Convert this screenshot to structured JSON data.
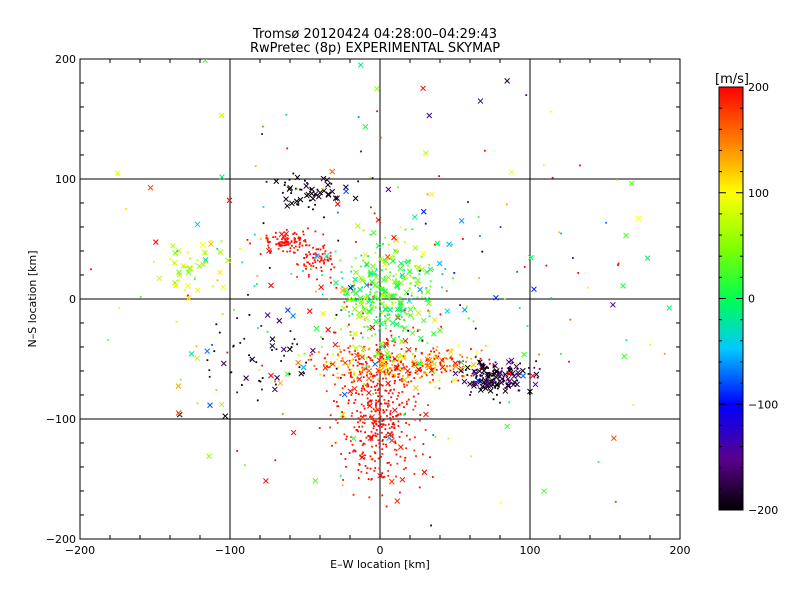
{
  "chart_data": {
    "type": "scatter",
    "title": "Tromsø 20120424 04:28:00–04:29:43",
    "subtitle": "RwPretec (8p) EXPERIMENTAL SKYMAP",
    "xlabel": "E–W location [km]",
    "ylabel": "N–S location [km]",
    "xlim": [
      -200,
      200
    ],
    "ylim": [
      -200,
      200
    ],
    "xticks": [
      -200,
      -100,
      0,
      100,
      200
    ],
    "yticks": [
      -200,
      -100,
      0,
      100,
      200
    ],
    "grid": true,
    "colorbar": {
      "label": "[m/s]",
      "range": [
        -200,
        200
      ],
      "ticks": [
        200,
        100,
        0,
        -100,
        -200
      ],
      "colormap": "rainbow (black-purple-blue-cyan-green-yellow-red)"
    },
    "markers": {
      "dot": "small dot",
      "cross": "×"
    },
    "clusters": [
      {
        "name": "south-central",
        "cx": -2,
        "cy": -95,
        "sx": 14,
        "sy": 35,
        "n": 420,
        "v": 195,
        "vs": 10,
        "cross": 0.05
      },
      {
        "name": "east-west band",
        "cx": 15,
        "cy": -55,
        "sx": 28,
        "sy": 8,
        "n": 380,
        "v": 160,
        "vs": 55,
        "cross": 0.12
      },
      {
        "name": "center plume",
        "cx": 5,
        "cy": 5,
        "sx": 16,
        "sy": 22,
        "n": 320,
        "v": 25,
        "vs": 35,
        "cross": 0.35
      },
      {
        "name": "north-west arc",
        "cx": -62,
        "cy": 48,
        "sx": 9,
        "sy": 5,
        "n": 110,
        "v": 195,
        "vs": 8,
        "cross": 0.05
      },
      {
        "name": "north-west arc 2",
        "cx": -42,
        "cy": 32,
        "sx": 6,
        "sy": 6,
        "n": 60,
        "v": 195,
        "vs": 8,
        "cross": 0.05
      },
      {
        "name": "east dark band",
        "cx": 78,
        "cy": -65,
        "sx": 12,
        "sy": 7,
        "n": 150,
        "v": -185,
        "vs": 20,
        "cross": 0.5
      },
      {
        "name": "north dark arc",
        "cx": -45,
        "cy": 90,
        "sx": 14,
        "sy": 8,
        "n": 55,
        "v": -195,
        "vs": 10,
        "cross": 0.6
      },
      {
        "name": "west green patch",
        "cx": -130,
        "cy": 28,
        "sx": 12,
        "sy": 14,
        "n": 45,
        "v": 70,
        "vs": 25,
        "cross": 0.45
      },
      {
        "name": "south-west dark",
        "cx": -75,
        "cy": -50,
        "sx": 25,
        "sy": 20,
        "n": 55,
        "v": -190,
        "vs": 20,
        "cross": 0.2
      },
      {
        "name": "scatter",
        "cx": 0,
        "cy": 0,
        "sx": 95,
        "sy": 85,
        "n": 280,
        "v": 60,
        "vs": 150,
        "cross": 0.35
      }
    ]
  }
}
